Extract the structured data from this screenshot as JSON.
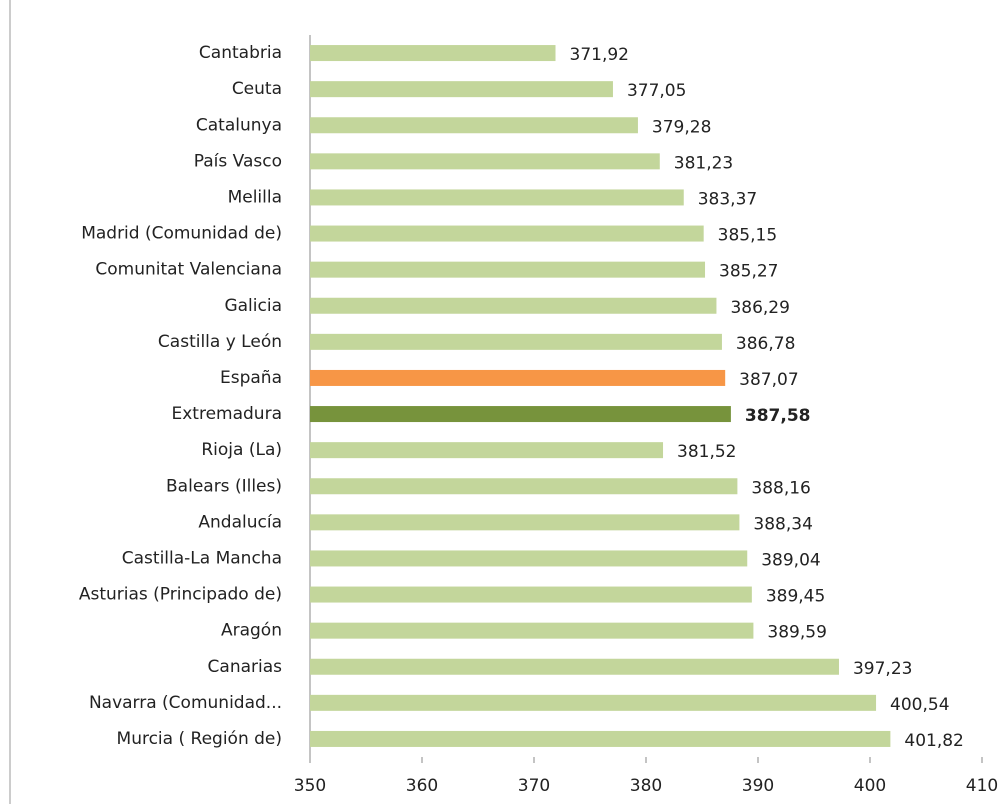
{
  "chart_data": {
    "type": "bar",
    "orientation": "horizontal",
    "categories": [
      "Cantabria",
      "Ceuta",
      "Catalunya",
      "País Vasco",
      "Melilla",
      "Madrid (Comunidad de)",
      "Comunitat Valenciana",
      "Galicia",
      "Castilla y León",
      "España",
      "Extremadura",
      "Rioja (La)",
      "Balears (Illes)",
      "Andalucía",
      "Castilla-La Mancha",
      "Asturias (Principado de)",
      "Aragón",
      "Canarias",
      "Navarra (Comunidad...",
      "Murcia ( Región de)"
    ],
    "values": [
      371.92,
      377.05,
      379.28,
      381.23,
      383.37,
      385.15,
      385.27,
      386.29,
      386.78,
      387.07,
      387.58,
      381.52,
      388.16,
      388.34,
      389.04,
      389.45,
      389.59,
      397.23,
      400.54,
      401.82
    ],
    "value_labels": [
      "371,92",
      "377,05",
      "379,28",
      "381,23",
      "383,37",
      "385,15",
      "385,27",
      "386,29",
      "386,78",
      "387,07",
      "387,58",
      "381,52",
      "388,16",
      "388,34",
      "389,04",
      "389,45",
      "389,59",
      "397,23",
      "400,54",
      "401,82"
    ],
    "colors": [
      "#c3d69b",
      "#c3d69b",
      "#c3d69b",
      "#c3d69b",
      "#c3d69b",
      "#c3d69b",
      "#c3d69b",
      "#c3d69b",
      "#c3d69b",
      "#f79646",
      "#77933c",
      "#c3d69b",
      "#c3d69b",
      "#c3d69b",
      "#c3d69b",
      "#c3d69b",
      "#c3d69b",
      "#c3d69b",
      "#c3d69b",
      "#c3d69b"
    ],
    "xlim": [
      350,
      410
    ],
    "xticks": [
      350,
      360,
      370,
      380,
      390,
      400,
      410
    ],
    "grid": false
  }
}
